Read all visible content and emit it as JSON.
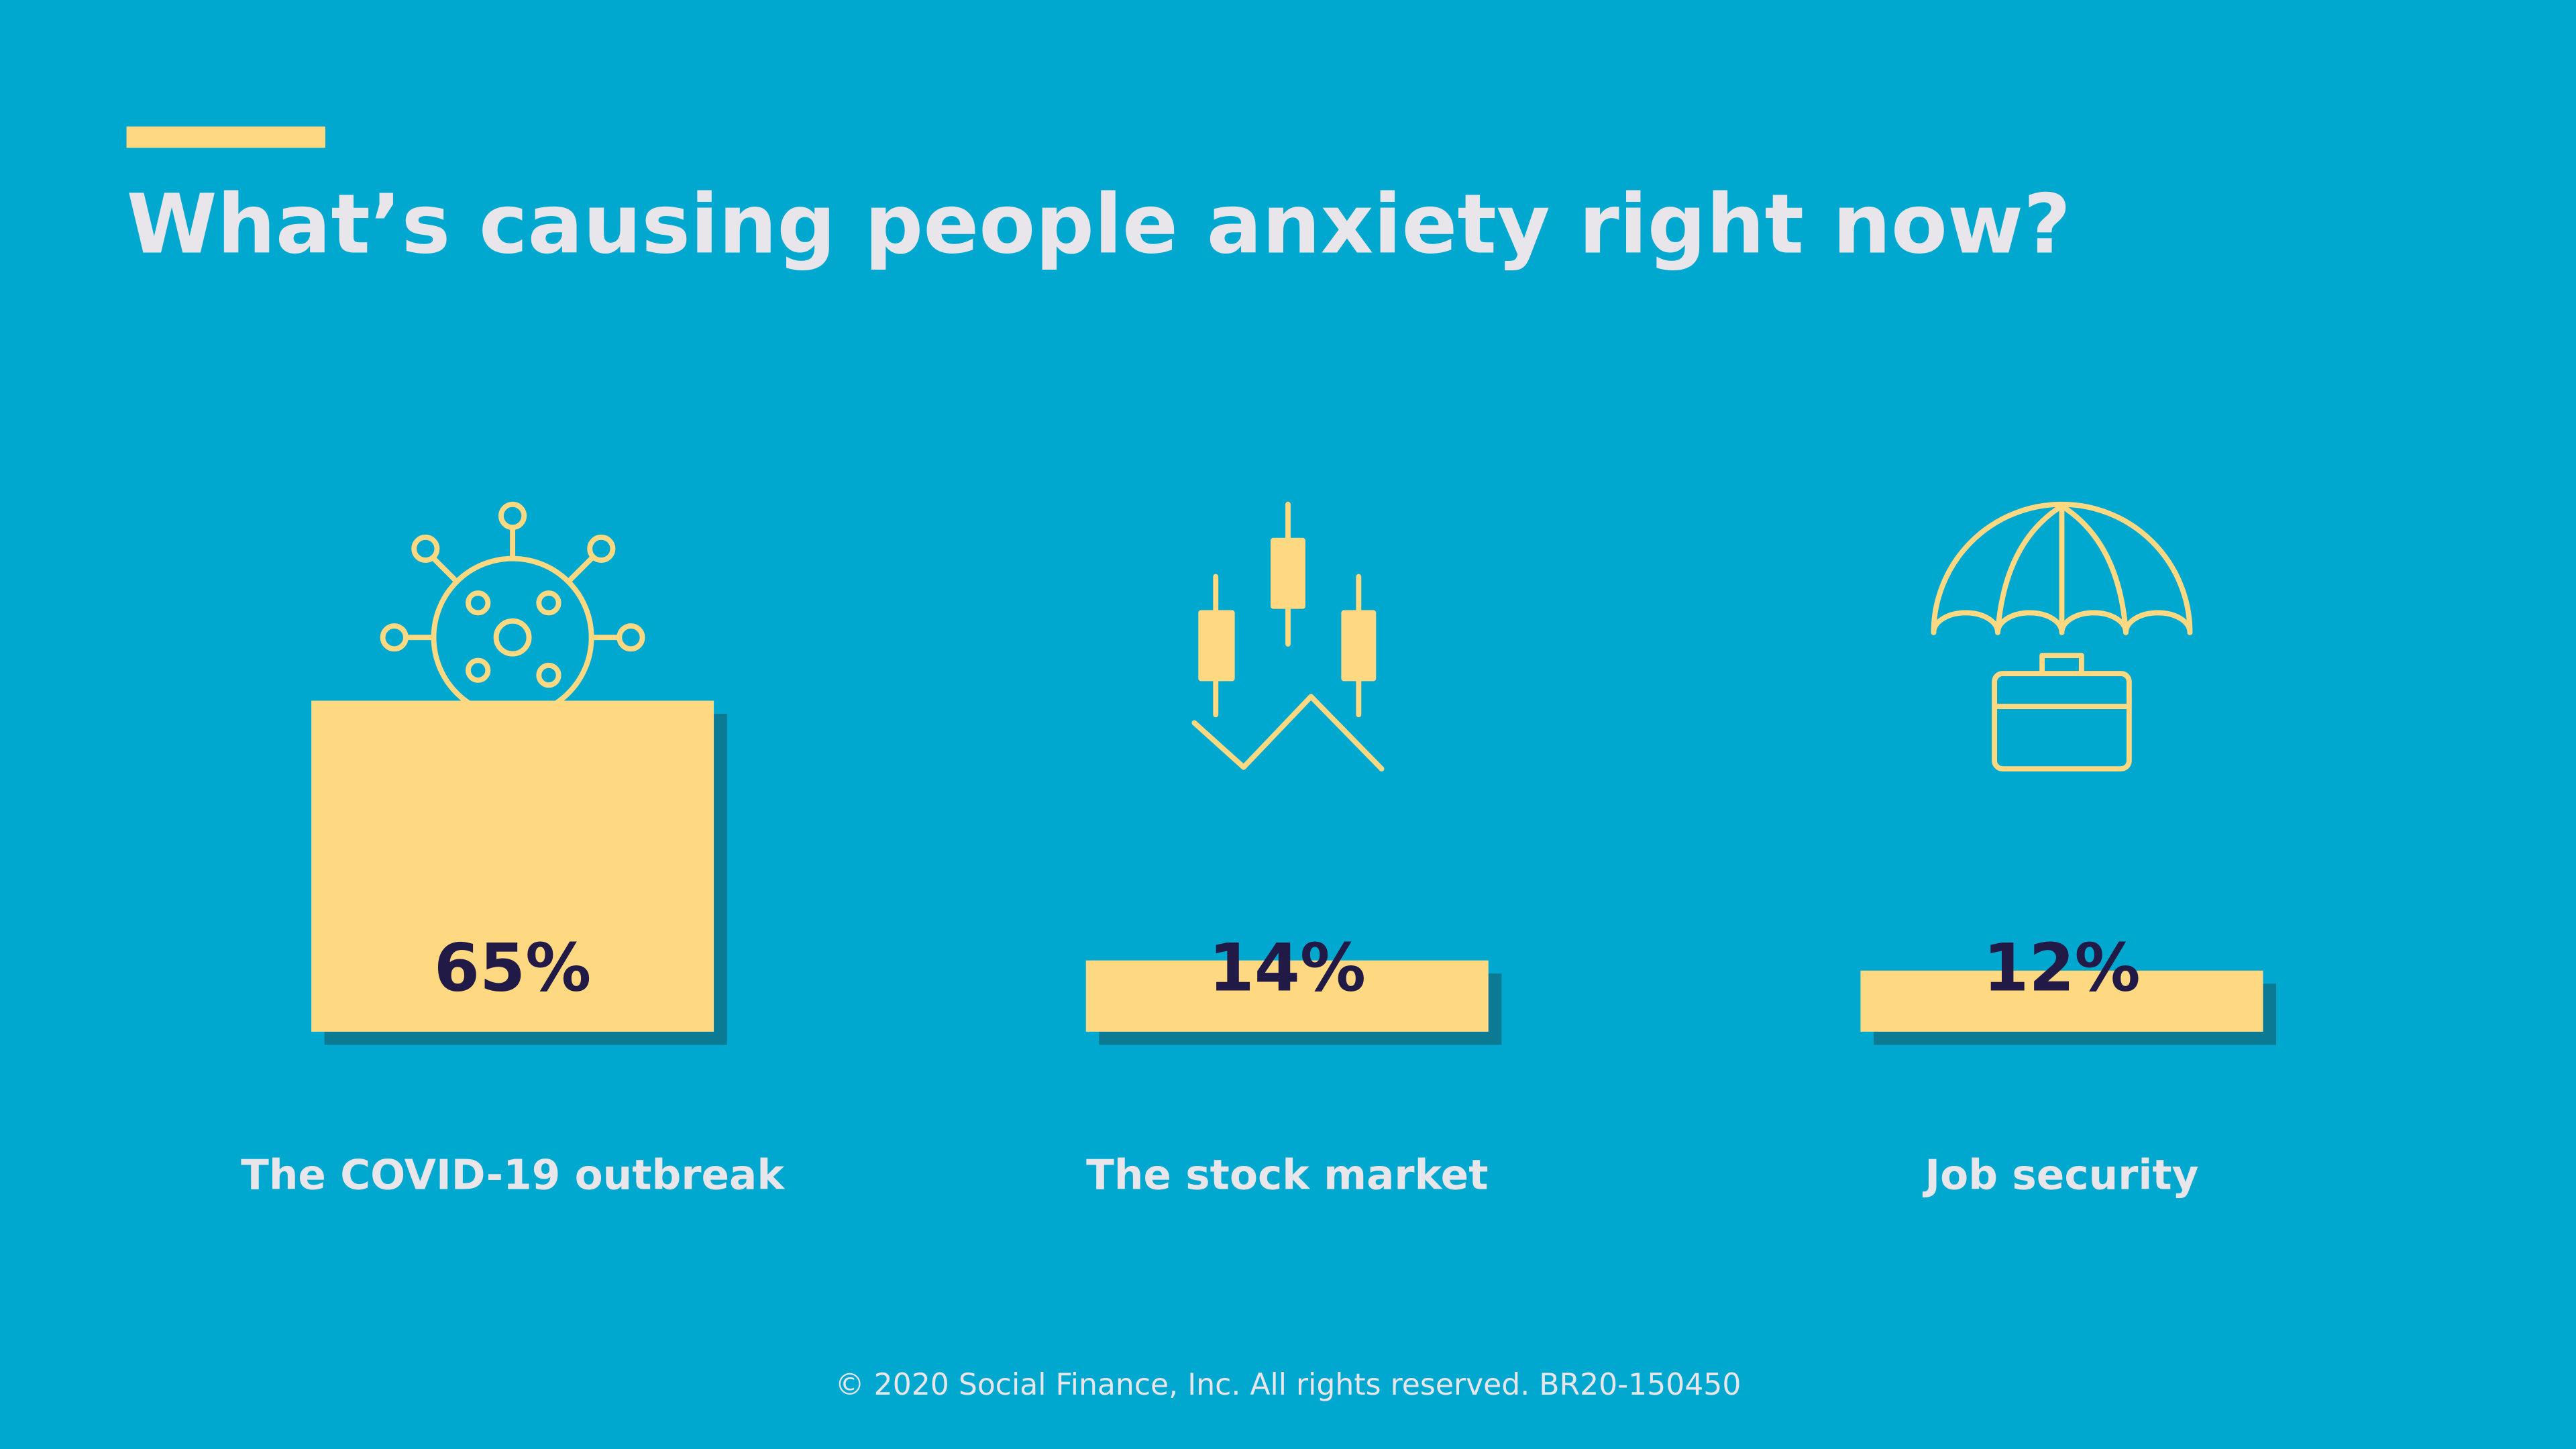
{
  "chart_data": {
    "type": "bar",
    "title": "What’s causing people anxiety right now?",
    "categories": [
      "The COVID-19 outbreak",
      "The stock market",
      "Job security"
    ],
    "values": [
      65,
      14,
      12
    ],
    "value_labels": [
      "65%",
      "14%",
      "12%"
    ],
    "color": "#ffd882",
    "footer": "© 2020 Social Finance, Inc. All rights reserved. BR20-150450"
  }
}
